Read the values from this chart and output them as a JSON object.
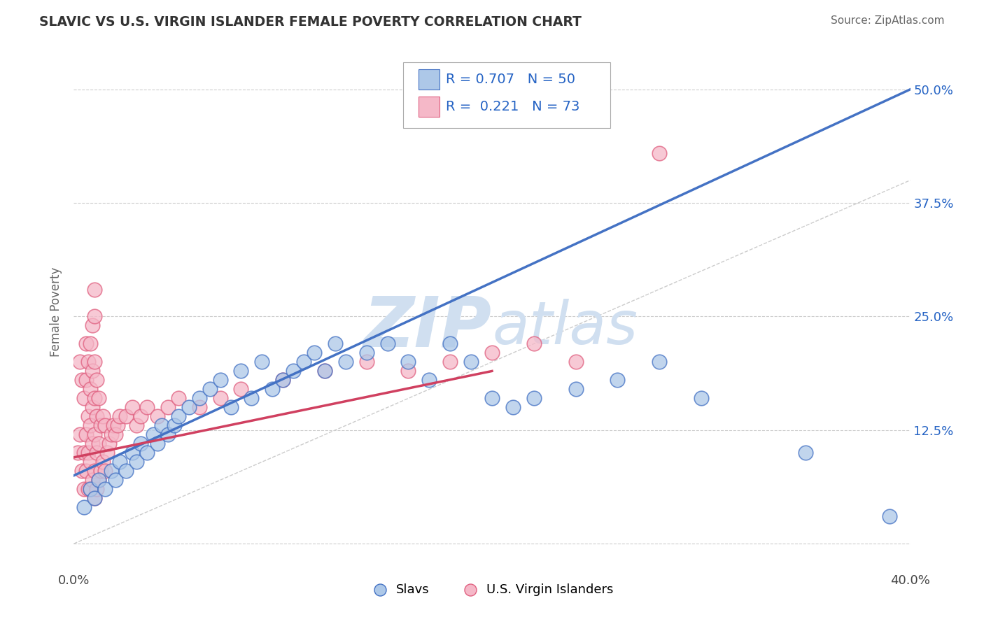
{
  "title": "SLAVIC VS U.S. VIRGIN ISLANDER FEMALE POVERTY CORRELATION CHART",
  "source": "Source: ZipAtlas.com",
  "ylabel": "Female Poverty",
  "xlim": [
    0,
    0.4
  ],
  "ylim": [
    -0.03,
    0.54
  ],
  "xtick_positions": [
    0.0,
    0.1,
    0.2,
    0.3,
    0.4
  ],
  "xtick_labels": [
    "0.0%",
    "",
    "",
    "",
    "40.0%"
  ],
  "ytick_positions": [
    0.0,
    0.125,
    0.25,
    0.375,
    0.5
  ],
  "ytick_labels": [
    "",
    "12.5%",
    "25.0%",
    "37.5%",
    "50.0%"
  ],
  "slavs_R": 0.707,
  "slavs_N": 50,
  "vi_R": 0.221,
  "vi_N": 73,
  "slavs_color": "#adc8e8",
  "slavs_edge_color": "#4472c4",
  "vi_color": "#f5b8c8",
  "vi_edge_color": "#e06080",
  "slavs_line_color": "#4472c4",
  "vi_line_color": "#d04060",
  "legend_color": "#2563c4",
  "watermark_color": "#d0dff0",
  "grid_color": "#cccccc",
  "bg_color": "#ffffff",
  "slavs_x": [
    0.005,
    0.008,
    0.01,
    0.012,
    0.015,
    0.018,
    0.02,
    0.022,
    0.025,
    0.028,
    0.03,
    0.032,
    0.035,
    0.038,
    0.04,
    0.042,
    0.045,
    0.048,
    0.05,
    0.055,
    0.06,
    0.065,
    0.07,
    0.075,
    0.08,
    0.085,
    0.09,
    0.095,
    0.1,
    0.105,
    0.11,
    0.115,
    0.12,
    0.125,
    0.13,
    0.14,
    0.15,
    0.16,
    0.17,
    0.18,
    0.19,
    0.2,
    0.21,
    0.22,
    0.24,
    0.26,
    0.28,
    0.3,
    0.35,
    0.39
  ],
  "slavs_y": [
    0.04,
    0.06,
    0.05,
    0.07,
    0.06,
    0.08,
    0.07,
    0.09,
    0.08,
    0.1,
    0.09,
    0.11,
    0.1,
    0.12,
    0.11,
    0.13,
    0.12,
    0.13,
    0.14,
    0.15,
    0.16,
    0.17,
    0.18,
    0.15,
    0.19,
    0.16,
    0.2,
    0.17,
    0.18,
    0.19,
    0.2,
    0.21,
    0.19,
    0.22,
    0.2,
    0.21,
    0.22,
    0.2,
    0.18,
    0.22,
    0.2,
    0.16,
    0.15,
    0.16,
    0.17,
    0.18,
    0.2,
    0.16,
    0.1,
    0.03
  ],
  "vi_x": [
    0.002,
    0.003,
    0.003,
    0.004,
    0.004,
    0.005,
    0.005,
    0.005,
    0.006,
    0.006,
    0.006,
    0.006,
    0.007,
    0.007,
    0.007,
    0.007,
    0.008,
    0.008,
    0.008,
    0.008,
    0.008,
    0.009,
    0.009,
    0.009,
    0.009,
    0.009,
    0.01,
    0.01,
    0.01,
    0.01,
    0.01,
    0.01,
    0.01,
    0.011,
    0.011,
    0.011,
    0.011,
    0.012,
    0.012,
    0.012,
    0.013,
    0.013,
    0.014,
    0.014,
    0.015,
    0.015,
    0.016,
    0.017,
    0.018,
    0.019,
    0.02,
    0.021,
    0.022,
    0.025,
    0.028,
    0.03,
    0.032,
    0.035,
    0.04,
    0.045,
    0.05,
    0.06,
    0.07,
    0.08,
    0.1,
    0.12,
    0.14,
    0.16,
    0.18,
    0.2,
    0.22,
    0.24,
    0.28
  ],
  "vi_y": [
    0.1,
    0.12,
    0.2,
    0.08,
    0.18,
    0.06,
    0.1,
    0.16,
    0.08,
    0.12,
    0.18,
    0.22,
    0.06,
    0.1,
    0.14,
    0.2,
    0.06,
    0.09,
    0.13,
    0.17,
    0.22,
    0.07,
    0.11,
    0.15,
    0.19,
    0.24,
    0.05,
    0.08,
    0.12,
    0.16,
    0.2,
    0.25,
    0.28,
    0.06,
    0.1,
    0.14,
    0.18,
    0.07,
    0.11,
    0.16,
    0.08,
    0.13,
    0.09,
    0.14,
    0.08,
    0.13,
    0.1,
    0.11,
    0.12,
    0.13,
    0.12,
    0.13,
    0.14,
    0.14,
    0.15,
    0.13,
    0.14,
    0.15,
    0.14,
    0.15,
    0.16,
    0.15,
    0.16,
    0.17,
    0.18,
    0.19,
    0.2,
    0.19,
    0.2,
    0.21,
    0.22,
    0.2,
    0.43
  ],
  "slavs_line_x": [
    0.0,
    0.4
  ],
  "slavs_line_y": [
    0.075,
    0.5
  ],
  "vi_line_x": [
    0.0,
    0.2
  ],
  "vi_line_y": [
    0.095,
    0.19
  ]
}
